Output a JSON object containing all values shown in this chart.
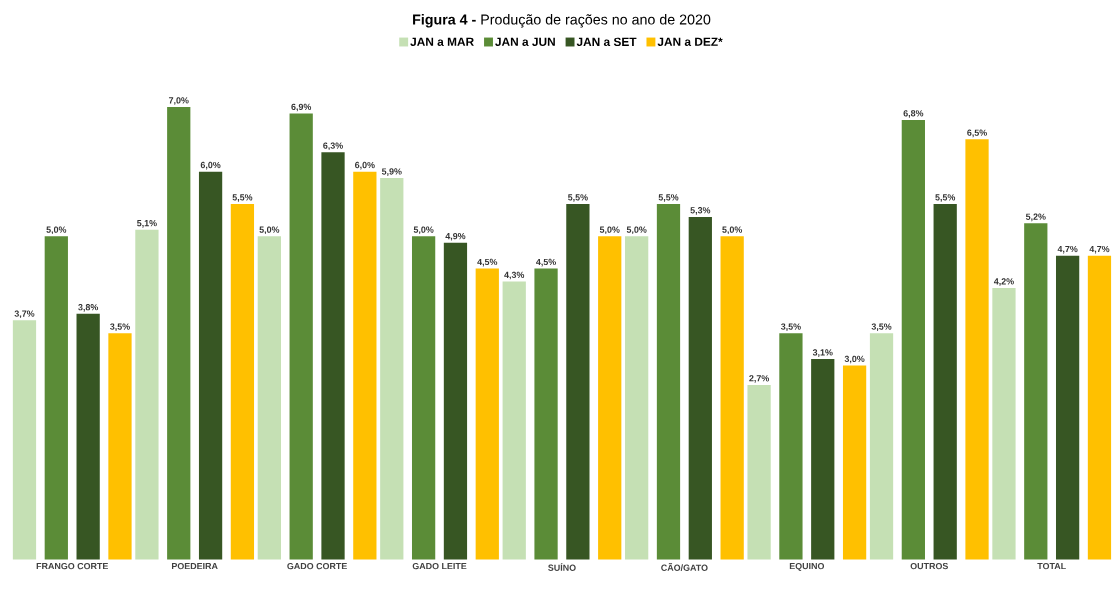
{
  "chart_data": {
    "type": "bar",
    "title": "**Figura 4 -** Produção de rações no ano de 2020",
    "categories": [
      "FRANGO CORTE",
      "POEDEIRA",
      "GADO CORTE",
      "GADO LEITE",
      "SUÍNO",
      "CÃO/GATO",
      "EQUINO",
      "OUTROS",
      "TOTAL"
    ],
    "series": [
      {
        "name": "JAN a MAR",
        "color": "#c5e0b4",
        "values": [
          3.7,
          5.1,
          5.0,
          5.9,
          4.3,
          5.0,
          2.7,
          3.5,
          4.2
        ],
        "value_labels": [
          "3,7%",
          "5,1%",
          "5,0%",
          "5,9%",
          "4,3%",
          "5,0%",
          "2,7%",
          "3,5%",
          "4,2%"
        ]
      },
      {
        "name": "JAN a JUN",
        "color": "#5b8c37",
        "values": [
          5.0,
          7.0,
          6.9,
          5.0,
          4.5,
          5.5,
          3.5,
          6.8,
          5.2
        ],
        "value_labels": [
          "5,0%",
          "7,0%",
          "6,9%",
          "5,0%",
          "4,5%",
          "5,5%",
          "3,5%",
          "6,8%",
          "5,2%"
        ]
      },
      {
        "name": "JAN a SET",
        "color": "#375623",
        "values": [
          3.8,
          6.0,
          6.3,
          4.9,
          5.5,
          5.3,
          3.1,
          5.5,
          4.7
        ],
        "value_labels": [
          "3,8%",
          "6,0%",
          "6,3%",
          "4,9%",
          "5,5%",
          "5,3%",
          "3,1%",
          "5,5%",
          "4,7%"
        ]
      },
      {
        "name": "JAN a DEZ*",
        "color": "#ffc000",
        "values": [
          3.5,
          5.5,
          6.0,
          4.5,
          5.0,
          5.0,
          3.0,
          6.5,
          4.7
        ],
        "value_labels": [
          "3,5%",
          "5,5%",
          "6,0%",
          "4,5%",
          "5,0%",
          "5,0%",
          "3,0%",
          "6,5%",
          "4,7%"
        ]
      }
    ],
    "legend": "top"
  }
}
